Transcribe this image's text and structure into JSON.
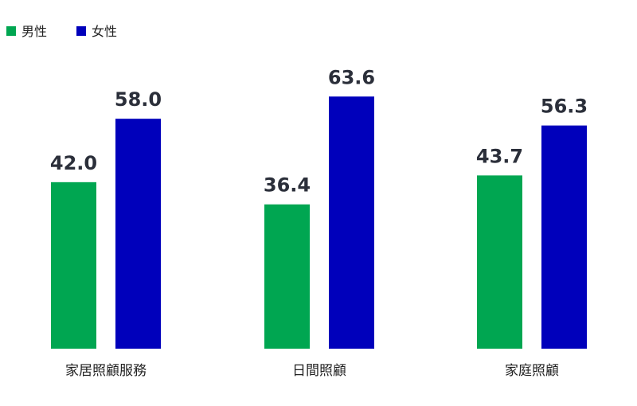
{
  "chart_data": {
    "type": "bar",
    "categories": [
      "家居照顧服務",
      "日間照顧",
      "家庭照顧"
    ],
    "series": [
      {
        "name": "男性",
        "color": "#00a651",
        "values": [
          42.0,
          36.4,
          43.7
        ]
      },
      {
        "name": "女性",
        "color": "#0000bb",
        "values": [
          58.0,
          63.6,
          56.3
        ]
      }
    ],
    "value_labels": {
      "男性": [
        "42.0",
        "36.4",
        "43.7"
      ],
      "女性": [
        "58.0",
        "63.6",
        "56.3"
      ]
    },
    "ylim": [
      0,
      70
    ],
    "grid": false,
    "legend_position": "top-left"
  }
}
